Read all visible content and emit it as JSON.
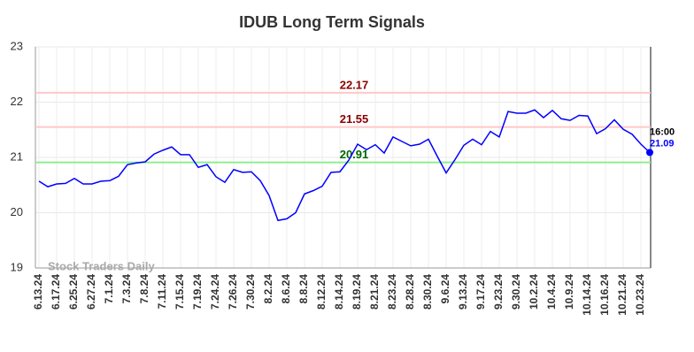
{
  "chart_data": {
    "type": "line",
    "title": "IDUB Long Term Signals",
    "categories": [
      "6.13.24",
      null,
      "6.17.24",
      null,
      "6.25.24",
      null,
      "6.27.24",
      null,
      "7.1.24",
      null,
      "7.3.24",
      null,
      "7.8.24",
      null,
      "7.11.24",
      null,
      "7.15.24",
      null,
      "7.19.24",
      null,
      "7.24.24",
      null,
      "7.26.24",
      null,
      "7.30.24",
      null,
      "8.2.24",
      null,
      "8.6.24",
      null,
      "8.8.24",
      null,
      "8.12.24",
      null,
      "8.14.24",
      null,
      "8.19.24",
      null,
      "8.21.24",
      null,
      "8.23.24",
      null,
      "8.28.24",
      null,
      "8.30.24",
      null,
      "9.6.24",
      null,
      "9.13.24",
      null,
      "9.17.24",
      null,
      "9.23.24",
      null,
      "9.30.24",
      null,
      "10.2.24",
      null,
      "10.4.24",
      null,
      "10.9.24",
      null,
      "10.14.24",
      null,
      "10.16.24",
      null,
      "10.21.24",
      null,
      "10.23.24",
      null
    ],
    "values": [
      20.57,
      20.47,
      20.52,
      20.53,
      20.62,
      20.52,
      20.52,
      20.57,
      20.58,
      20.66,
      20.87,
      20.9,
      20.92,
      21.06,
      21.13,
      21.19,
      21.05,
      21.05,
      20.82,
      20.87,
      20.65,
      20.55,
      20.78,
      20.73,
      20.74,
      20.58,
      20.31,
      19.86,
      19.89,
      20.0,
      20.34,
      20.4,
      20.48,
      20.73,
      20.74,
      20.95,
      21.24,
      21.14,
      21.23,
      21.08,
      21.37,
      21.29,
      21.21,
      21.24,
      21.33,
      21.02,
      20.72,
      20.96,
      21.22,
      21.33,
      21.23,
      21.47,
      21.37,
      21.83,
      21.8,
      21.8,
      21.86,
      21.72,
      21.85,
      21.7,
      21.67,
      21.76,
      21.75,
      21.43,
      21.52,
      21.68,
      21.51,
      21.42,
      21.24,
      21.09
    ],
    "color": "#0000ff",
    "ylim": [
      19,
      23
    ],
    "yticks": [
      19,
      20,
      21,
      22,
      23
    ],
    "grid": true,
    "hlines": [
      {
        "value": 22.17,
        "color": "#ffc8c8",
        "label_color": "#8b0000"
      },
      {
        "value": 21.55,
        "color": "#ffc8c8",
        "label_color": "#8b0000"
      },
      {
        "value": 20.91,
        "color": "#90ee90",
        "label_color": "#006400"
      }
    ],
    "last_time": "16:00",
    "last_value": 21.09,
    "watermark": "Stock Traders Daily"
  }
}
